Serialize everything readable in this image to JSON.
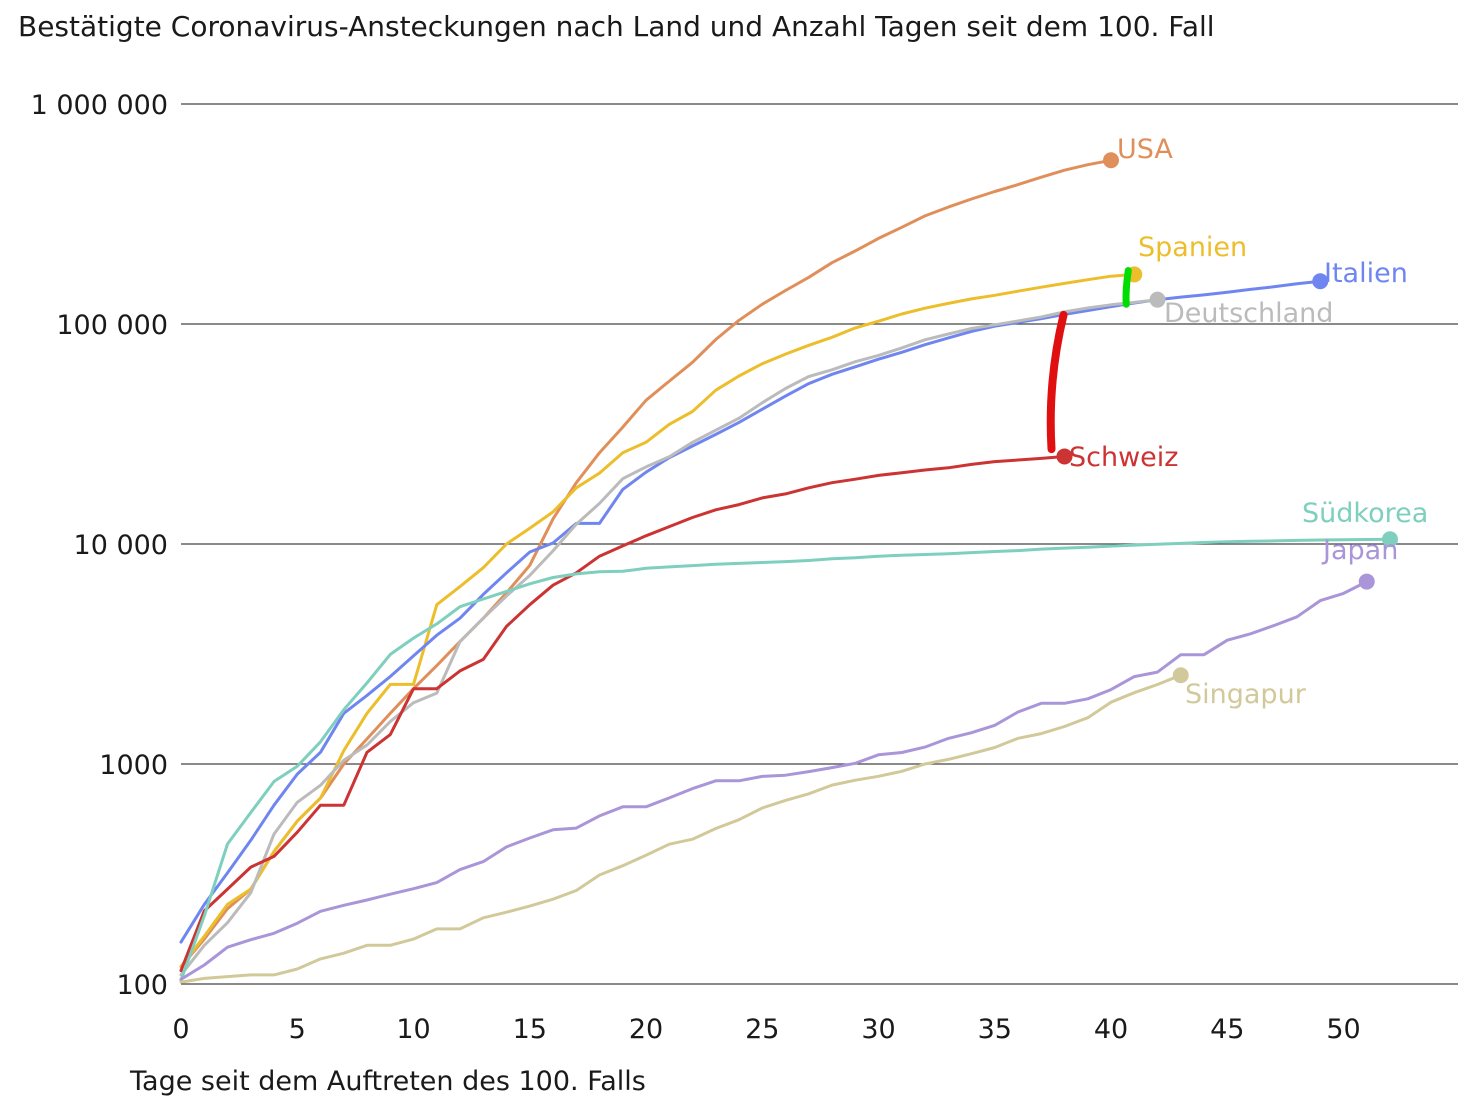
{
  "chart_data": {
    "type": "line",
    "title": "Bestätigte Coronavirus-Ansteckungen nach Land und Anzahl Tagen seit dem 100. Fall",
    "xlabel": "Tage seit dem Auftreten des 100. Falls",
    "ylabel": "",
    "yscale": "log",
    "ylim": [
      100,
      1000000
    ],
    "xlim": [
      0,
      55
    ],
    "y_ticks": [
      {
        "value": 1000000,
        "label": "1 000 000"
      },
      {
        "value": 100000,
        "label": "100 000"
      },
      {
        "value": 10000,
        "label": "10 000"
      },
      {
        "value": 1000,
        "label": "1000"
      },
      {
        "value": 100,
        "label": "100"
      }
    ],
    "x_ticks": [
      {
        "value": 0,
        "label": "0"
      },
      {
        "value": 5,
        "label": "5"
      },
      {
        "value": 10,
        "label": "10"
      },
      {
        "value": 15,
        "label": "15"
      },
      {
        "value": 20,
        "label": "20"
      },
      {
        "value": 25,
        "label": "25"
      },
      {
        "value": 30,
        "label": "30"
      },
      {
        "value": 35,
        "label": "35"
      },
      {
        "value": 40,
        "label": "40"
      },
      {
        "value": 45,
        "label": "45"
      },
      {
        "value": 50,
        "label": "50"
      }
    ],
    "grid": true,
    "series": [
      {
        "name": "USA",
        "color": "#E08F5A",
        "x": [
          0,
          1,
          2,
          3,
          4,
          5,
          6,
          7,
          8,
          9,
          10,
          11,
          12,
          13,
          14,
          15,
          16,
          17,
          18,
          19,
          20,
          21,
          22,
          23,
          24,
          25,
          26,
          27,
          28,
          29,
          30,
          31,
          32,
          33,
          34,
          35,
          36,
          37,
          38,
          39,
          40
        ],
        "values": [
          120,
          160,
          220,
          270,
          400,
          550,
          700,
          1000,
          1300,
          1700,
          2200,
          2800,
          3600,
          4600,
          6000,
          8000,
          13000,
          19000,
          26000,
          34000,
          45000,
          55000,
          67000,
          85000,
          104000,
          123000,
          142000,
          163000,
          190000,
          215000,
          245000,
          275000,
          310000,
          340000,
          370000,
          400000,
          430000,
          465000,
          500000,
          530000,
          555000
        ]
      },
      {
        "name": "Spanien",
        "color": "#EDBE2B",
        "x": [
          0,
          1,
          2,
          3,
          4,
          5,
          6,
          7,
          8,
          9,
          10,
          11,
          12,
          13,
          14,
          15,
          16,
          17,
          18,
          19,
          20,
          21,
          22,
          23,
          24,
          25,
          26,
          27,
          28,
          29,
          30,
          31,
          32,
          33,
          34,
          35,
          36,
          37,
          38,
          39,
          40,
          41
        ],
        "values": [
          120,
          165,
          230,
          270,
          400,
          550,
          700,
          1150,
          1700,
          2300,
          2300,
          5300,
          6400,
          7800,
          10000,
          11800,
          14000,
          18000,
          21000,
          26000,
          29000,
          35000,
          40000,
          50000,
          58000,
          66000,
          73000,
          80000,
          87000,
          96000,
          103000,
          111000,
          118000,
          124000,
          130000,
          135000,
          141000,
          147000,
          153000,
          159000,
          165000,
          168000
        ]
      },
      {
        "name": "Italien",
        "color": "#6F86F0",
        "x": [
          0,
          1,
          2,
          3,
          4,
          5,
          6,
          7,
          8,
          9,
          10,
          11,
          12,
          13,
          14,
          15,
          16,
          17,
          18,
          19,
          20,
          21,
          22,
          23,
          24,
          25,
          26,
          27,
          28,
          29,
          30,
          31,
          32,
          33,
          34,
          35,
          36,
          37,
          38,
          39,
          40,
          41,
          42,
          43,
          44,
          45,
          46,
          47,
          48,
          49
        ],
        "values": [
          155,
          230,
          320,
          450,
          650,
          900,
          1130,
          1700,
          2050,
          2500,
          3100,
          3850,
          4600,
          5900,
          7400,
          9200,
          10100,
          12400,
          12400,
          17700,
          21200,
          24700,
          27900,
          31500,
          35700,
          41000,
          47000,
          53600,
          59100,
          63900,
          69200,
          74400,
          80500,
          86500,
          92500,
          97700,
          101700,
          105800,
          110600,
          115200,
          119800,
          124600,
          128900,
          132500,
          135600,
          139400,
          143600,
          147600,
          152300,
          156400
        ]
      },
      {
        "name": "Deutschland",
        "color": "#BBBBBB",
        "x": [
          0,
          1,
          2,
          3,
          4,
          5,
          6,
          7,
          8,
          9,
          10,
          11,
          12,
          13,
          14,
          15,
          16,
          17,
          18,
          19,
          20,
          21,
          22,
          23,
          24,
          25,
          26,
          27,
          28,
          29,
          30,
          31,
          32,
          33,
          34,
          35,
          36,
          37,
          38,
          39,
          40,
          41,
          42
        ],
        "values": [
          110,
          150,
          190,
          260,
          480,
          670,
          800,
          1040,
          1220,
          1560,
          1900,
          2100,
          3600,
          4600,
          5800,
          7200,
          9300,
          12300,
          15300,
          19800,
          22400,
          24900,
          29000,
          32900,
          37300,
          43900,
          50900,
          57700,
          61900,
          67400,
          72000,
          77900,
          84800,
          90100,
          95400,
          99200,
          103200,
          107600,
          113500,
          118200,
          122200,
          125400,
          129000
        ]
      },
      {
        "name": "Schweiz",
        "color": "#CC3333",
        "x": [
          0,
          1,
          2,
          3,
          4,
          5,
          6,
          7,
          8,
          9,
          10,
          11,
          12,
          13,
          14,
          15,
          16,
          17,
          18,
          19,
          20,
          21,
          22,
          23,
          24,
          25,
          26,
          27,
          28,
          29,
          30,
          31,
          32,
          33,
          34,
          35,
          36,
          37,
          38
        ],
        "values": [
          115,
          215,
          270,
          340,
          380,
          490,
          650,
          650,
          1130,
          1360,
          2200,
          2200,
          2650,
          2990,
          4220,
          5300,
          6500,
          7400,
          8800,
          9800,
          10900,
          12000,
          13200,
          14300,
          15100,
          16200,
          16900,
          18000,
          19000,
          19700,
          20500,
          21100,
          21700,
          22200,
          23000,
          23700,
          24100,
          24500,
          25000
        ]
      },
      {
        "name": "Südkorea",
        "color": "#7ECFBE",
        "x": [
          0,
          1,
          2,
          3,
          4,
          5,
          6,
          7,
          8,
          9,
          10,
          11,
          12,
          13,
          14,
          15,
          16,
          17,
          18,
          19,
          20,
          21,
          22,
          23,
          24,
          25,
          26,
          27,
          28,
          29,
          30,
          31,
          32,
          33,
          34,
          35,
          36,
          37,
          38,
          39,
          40,
          41,
          42,
          43,
          44,
          45,
          46,
          47,
          48,
          49,
          50,
          51,
          52
        ],
        "values": [
          104,
          204,
          433,
          602,
          833,
          977,
          1261,
          1766,
          2337,
          3150,
          3736,
          4335,
          5186,
          5621,
          6088,
          6593,
          7041,
          7314,
          7478,
          7513,
          7755,
          7869,
          7979,
          8086,
          8162,
          8236,
          8320,
          8413,
          8565,
          8652,
          8799,
          8897,
          8961,
          9037,
          9137,
          9241,
          9332,
          9478,
          9583,
          9661,
          9786,
          9887,
          9976,
          10062,
          10156,
          10237,
          10284,
          10331,
          10384,
          10423,
          10450,
          10480,
          10512
        ]
      },
      {
        "name": "Japan",
        "color": "#A995D8",
        "x": [
          0,
          1,
          2,
          3,
          4,
          5,
          6,
          7,
          8,
          9,
          10,
          11,
          12,
          13,
          14,
          15,
          16,
          17,
          18,
          19,
          20,
          21,
          22,
          23,
          24,
          25,
          26,
          27,
          28,
          29,
          30,
          31,
          32,
          33,
          34,
          35,
          36,
          37,
          38,
          39,
          40,
          41,
          42,
          43,
          44,
          45,
          46,
          47,
          48,
          49,
          50,
          51
        ],
        "values": [
          105,
          122,
          147,
          159,
          170,
          189,
          214,
          228,
          241,
          256,
          271,
          289,
          331,
          360,
          420,
          461,
          502,
          511,
          581,
          639,
          639,
          701,
          773,
          839,
          839,
          878,
          889,
          924,
          963,
          1007,
          1101,
          1128,
          1193,
          1307,
          1387,
          1499,
          1724,
          1887,
          1887,
          1978,
          2178,
          2495,
          2617,
          3139,
          3139,
          3654,
          3906,
          4257,
          4667,
          5530,
          5960,
          6748
        ]
      },
      {
        "name": "Singapur",
        "color": "#D2C99A",
        "x": [
          0,
          1,
          2,
          3,
          4,
          5,
          6,
          7,
          8,
          9,
          10,
          11,
          12,
          13,
          14,
          15,
          16,
          17,
          18,
          19,
          20,
          21,
          22,
          23,
          24,
          25,
          26,
          27,
          28,
          29,
          30,
          31,
          32,
          33,
          34,
          35,
          36,
          37,
          38,
          39,
          40,
          41,
          42,
          43
        ],
        "values": [
          102,
          106,
          108,
          110,
          110,
          117,
          130,
          138,
          150,
          150,
          160,
          178,
          178,
          200,
          212,
          226,
          243,
          266,
          313,
          345,
          385,
          432,
          455,
          509,
          558,
          631,
          683,
          732,
          802,
          844,
          879,
          926,
          1000,
          1049,
          1114,
          1189,
          1309,
          1375,
          1481,
          1623,
          1910,
          2108,
          2299,
          2532
        ]
      }
    ],
    "annotations": [
      {
        "text": "Highlighted gap between USA/Spanien label area and Deutschland",
        "color": "#00DD00"
      },
      {
        "text": "Highlighted gap between Deutschland/Italien and Schweiz",
        "color": "#E01010"
      }
    ]
  }
}
